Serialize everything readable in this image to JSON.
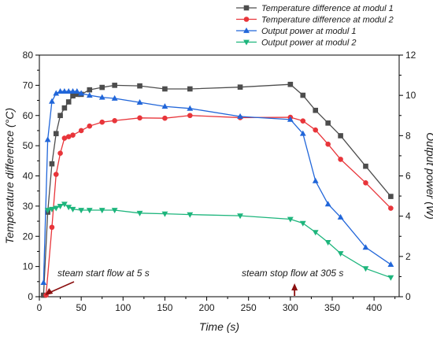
{
  "chart_data": {
    "type": "line",
    "title": "",
    "xlabel": "Time (s)",
    "ylabel_left": "Temperature difference (°C)",
    "ylabel_right": "Output power (W)",
    "xlim": [
      0,
      430
    ],
    "ylim_left": [
      0,
      80
    ],
    "ylim_right": [
      0,
      12
    ],
    "x_ticks": [
      0,
      50,
      100,
      150,
      200,
      250,
      300,
      350,
      400
    ],
    "y_left_ticks": [
      0,
      10,
      20,
      30,
      40,
      50,
      60,
      70,
      80
    ],
    "y_right_ticks": [
      0,
      2,
      4,
      6,
      8,
      10,
      12
    ],
    "grid": false,
    "legend_position": "top-right, outside plot",
    "series": [
      {
        "name": "Temperature difference at modul 1",
        "axis": "left",
        "color": "#4d4d4d",
        "marker": "square",
        "points": [
          [
            5,
            0.5
          ],
          [
            10,
            28
          ],
          [
            15,
            44
          ],
          [
            20,
            54
          ],
          [
            25,
            60
          ],
          [
            30,
            62.5
          ],
          [
            35,
            64.5
          ],
          [
            40,
            66.5
          ],
          [
            45,
            67
          ],
          [
            50,
            67
          ],
          [
            60,
            68.5
          ],
          [
            75,
            69.3
          ],
          [
            90,
            70
          ],
          [
            120,
            69.8
          ],
          [
            150,
            68.8
          ],
          [
            180,
            68.8
          ],
          [
            240,
            69.4
          ],
          [
            300,
            70.3
          ],
          [
            315,
            66.7
          ],
          [
            330,
            61.7
          ],
          [
            345,
            57.5
          ],
          [
            360,
            53.3
          ],
          [
            390,
            43.2
          ],
          [
            420,
            33.2
          ]
        ]
      },
      {
        "name": "Temperature difference at modul 2",
        "axis": "left",
        "color": "#e8353a",
        "marker": "circle",
        "points": [
          [
            8,
            0.5
          ],
          [
            15,
            23
          ],
          [
            20,
            40.5
          ],
          [
            25,
            47.5
          ],
          [
            30,
            52.5
          ],
          [
            35,
            53
          ],
          [
            40,
            53.5
          ],
          [
            50,
            55
          ],
          [
            60,
            56.5
          ],
          [
            75,
            57.8
          ],
          [
            90,
            58.3
          ],
          [
            120,
            59.2
          ],
          [
            150,
            59.1
          ],
          [
            180,
            60
          ],
          [
            240,
            59.3
          ],
          [
            300,
            59.4
          ],
          [
            315,
            58.2
          ],
          [
            330,
            55.2
          ],
          [
            345,
            50.5
          ],
          [
            360,
            45.5
          ],
          [
            390,
            37.7
          ],
          [
            420,
            29.3
          ]
        ]
      },
      {
        "name": "Output power at modul 1",
        "axis": "right",
        "color": "#2166d9",
        "marker": "triangle-up",
        "points": [
          [
            5,
            0.7
          ],
          [
            10,
            7.8
          ],
          [
            15,
            9.7
          ],
          [
            20,
            10.1
          ],
          [
            25,
            10.2
          ],
          [
            30,
            10.2
          ],
          [
            35,
            10.2
          ],
          [
            40,
            10.2
          ],
          [
            45,
            10.2
          ],
          [
            50,
            10.1
          ],
          [
            60,
            10
          ],
          [
            75,
            9.9
          ],
          [
            90,
            9.85
          ],
          [
            120,
            9.65
          ],
          [
            150,
            9.45
          ],
          [
            180,
            9.35
          ],
          [
            240,
            8.95
          ],
          [
            300,
            8.8
          ],
          [
            315,
            8.1
          ],
          [
            330,
            5.75
          ],
          [
            345,
            4.6
          ],
          [
            360,
            3.95
          ],
          [
            390,
            2.45
          ],
          [
            420,
            1.6
          ]
        ]
      },
      {
        "name": "Output power at modul 2",
        "axis": "right",
        "color": "#1db57c",
        "marker": "triangle-down",
        "points": [
          [
            10,
            4.3
          ],
          [
            15,
            4.35
          ],
          [
            20,
            4.4
          ],
          [
            25,
            4.5
          ],
          [
            30,
            4.6
          ],
          [
            35,
            4.45
          ],
          [
            40,
            4.35
          ],
          [
            50,
            4.3
          ],
          [
            60,
            4.3
          ],
          [
            75,
            4.3
          ],
          [
            90,
            4.3
          ],
          [
            120,
            4.15
          ],
          [
            150,
            4.12
          ],
          [
            180,
            4.08
          ],
          [
            240,
            4.02
          ],
          [
            300,
            3.85
          ],
          [
            315,
            3.65
          ],
          [
            330,
            3.2
          ],
          [
            345,
            2.7
          ],
          [
            360,
            2.15
          ],
          [
            390,
            1.4
          ],
          [
            420,
            0.95
          ]
        ]
      }
    ],
    "annotations": [
      {
        "text": "steam start flow at 5 s",
        "arrow_x": 5
      },
      {
        "text": "steam stop flow at 305 s",
        "arrow_x": 305
      }
    ]
  }
}
